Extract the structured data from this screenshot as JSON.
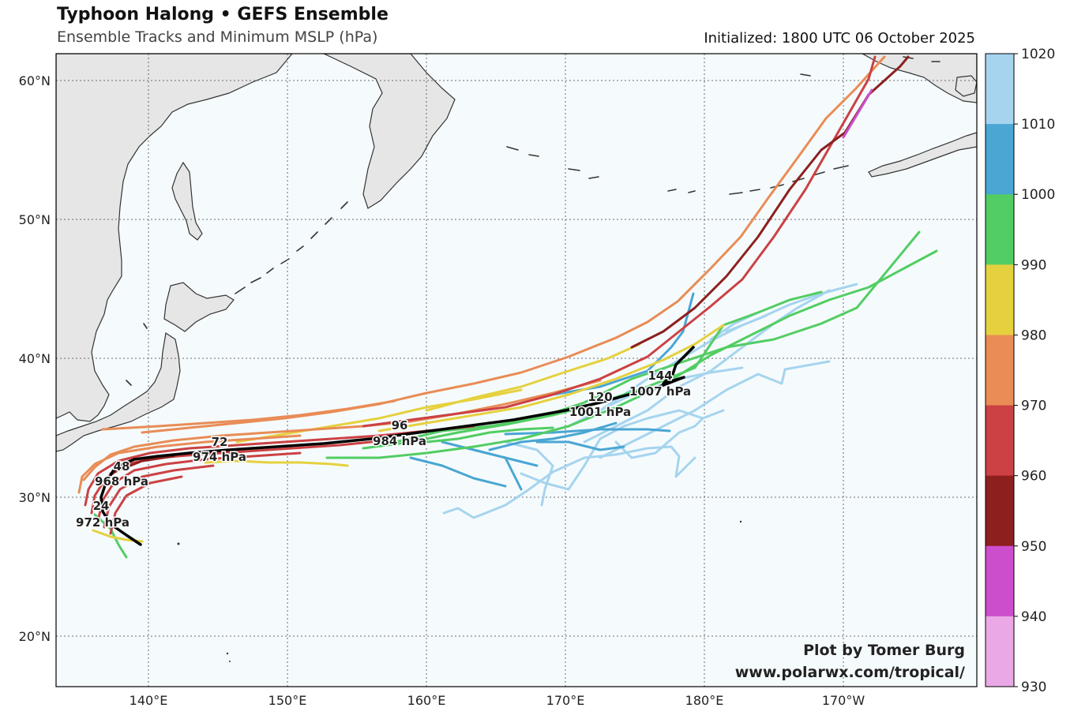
{
  "header": {
    "title": "Typhoon Halong • GEFS Ensemble",
    "subtitle": "Ensemble Tracks and Minimum MSLP (hPa)",
    "initialized": "Initialized: 1800 UTC 06 October 2025"
  },
  "axes": {
    "lon_ticks": [
      "140°E",
      "150°E",
      "160°E",
      "170°E",
      "180°E",
      "170°W"
    ],
    "lat_ticks": [
      "60°N",
      "50°N",
      "40°N",
      "30°N",
      "20°N"
    ]
  },
  "colorbar": {
    "ticks": [
      "1020",
      "1010",
      "1000",
      "990",
      "980",
      "970",
      "960",
      "950",
      "940",
      "930"
    ],
    "bands": [
      {
        "range": "1010-1020",
        "color": "#a6d4ee"
      },
      {
        "range": "1000-1010",
        "color": "#4aa6d3"
      },
      {
        "range": "990-1000",
        "color": "#52cd63"
      },
      {
        "range": "980-990",
        "color": "#e5d13e"
      },
      {
        "range": "970-980",
        "color": "#e98c56"
      },
      {
        "range": "960-970",
        "color": "#cc4143"
      },
      {
        "range": "950-960",
        "color": "#8e1f1f"
      },
      {
        "range": "940-950",
        "color": "#cc4ecc"
      },
      {
        "range": "930-940",
        "color": "#eaa8e6"
      }
    ]
  },
  "mean_track_labels": [
    {
      "hour": "24",
      "pressure": "972 hPa"
    },
    {
      "hour": "48",
      "pressure": "968 hPa"
    },
    {
      "hour": "72",
      "pressure": "974 hPa"
    },
    {
      "hour": "96",
      "pressure": "984 hPa"
    },
    {
      "hour": "120",
      "pressure": "1001 hPa"
    },
    {
      "hour": "144",
      "pressure": "1007 hPa"
    }
  ],
  "credit": {
    "line1": "Plot by Tomer Burg",
    "line2": "www.polarwx.com/tropical/"
  }
}
